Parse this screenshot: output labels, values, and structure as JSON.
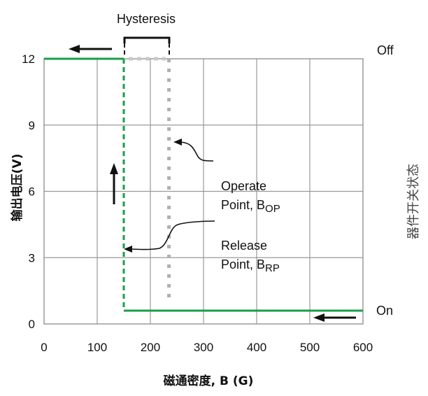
{
  "chart_data": {
    "type": "line",
    "title": "",
    "xlabel": "磁通密度, B (G)",
    "ylabel": "输出电压(V)",
    "right_label": "器件开关状态",
    "xlim": [
      0,
      600
    ],
    "ylim": [
      0,
      12
    ],
    "x_ticks": [
      0,
      100,
      200,
      300,
      400,
      500,
      600
    ],
    "y_ticks": [
      0,
      3,
      6,
      9,
      12
    ],
    "grid": true,
    "series": [
      {
        "style": "solid",
        "color": "#1a9e4a",
        "points": [
          [
            0,
            12
          ],
          [
            150,
            12
          ],
          [
            150,
            0.6
          ],
          [
            600,
            0.6
          ]
        ]
      },
      {
        "style": "dashed",
        "color": "#1a9e4a",
        "points": [
          [
            150,
            12
          ],
          [
            150,
            0.6
          ]
        ]
      }
    ],
    "markers": {
      "release_x": 150,
      "operate_x": 235,
      "operate_line_color": "#b0b0b0",
      "hysteresis_line_color": "#c8c8c8"
    },
    "annotations": {
      "hysteresis": "Hysteresis",
      "off": "Off",
      "on": "On",
      "operate_line1": "Operate",
      "operate_line2": "Point, B",
      "operate_sub": "OP",
      "release_line1": "Release",
      "release_line2": "Point, B",
      "release_sub": "RP"
    }
  }
}
